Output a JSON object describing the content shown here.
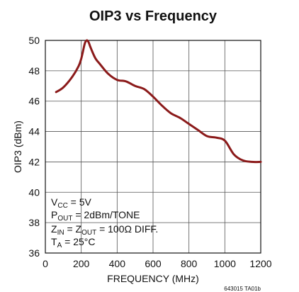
{
  "chart_data": {
    "type": "line",
    "title": "OIP3 vs Frequency",
    "xlabel": "FREQUENCY (MHz)",
    "ylabel": "OIP3 (dBm)",
    "xlim": [
      0,
      1200
    ],
    "ylim": [
      36,
      50
    ],
    "xticks": [
      0,
      200,
      400,
      600,
      800,
      1000,
      1200
    ],
    "yticks": [
      36,
      38,
      40,
      42,
      44,
      46,
      48,
      50
    ],
    "grid": true,
    "line_color": "#8b1a1a",
    "series": [
      {
        "x": [
          60,
          100,
          150,
          185,
          200,
          210,
          220,
          230,
          240,
          250,
          260,
          280,
          300,
          350,
          400,
          450,
          500,
          550,
          600,
          650,
          700,
          750,
          800,
          850,
          900,
          950,
          1000,
          1050,
          1100,
          1150,
          1200
        ],
        "y": [
          46.6,
          46.9,
          47.6,
          48.3,
          48.8,
          49.3,
          49.8,
          50.0,
          49.9,
          49.6,
          49.3,
          48.8,
          48.5,
          47.8,
          47.4,
          47.3,
          47.0,
          46.8,
          46.3,
          45.7,
          45.2,
          44.9,
          44.5,
          44.1,
          43.7,
          43.6,
          43.4,
          42.5,
          42.1,
          42.0,
          42.0
        ]
      }
    ],
    "annotations": {
      "vcc": {
        "main": "V",
        "sub": "CC",
        "rest": " = 5V"
      },
      "pout": {
        "main": "P",
        "sub": "OUT",
        "rest": " = 2dBm/TONE"
      },
      "zin": {
        "main1": "Z",
        "sub1": "IN",
        "mid": " = Z",
        "sub2": "OUT",
        "rest": " = 100Ω DIFF."
      },
      "ta": {
        "main": "T",
        "sub": "A",
        "rest": " = 25°C"
      }
    },
    "figure_code": "643015 TA01b"
  }
}
